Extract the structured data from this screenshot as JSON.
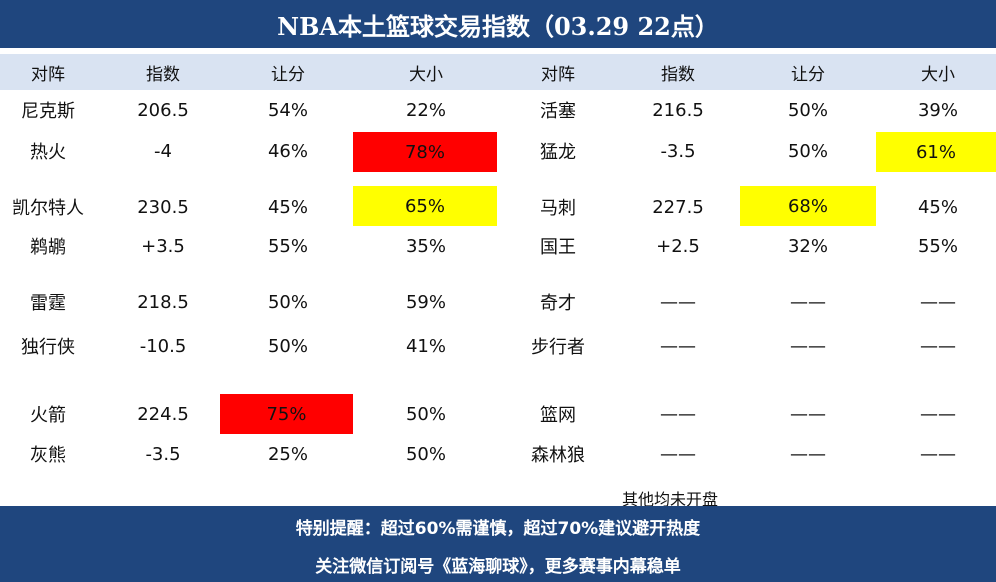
{
  "title": "NBA本土篮球交易指数（03.29 22点）",
  "headers": [
    "对阵",
    "指数",
    "让分",
    "大小",
    "对阵",
    "指数",
    "让分",
    "大小"
  ],
  "rows": [
    [
      "尼克斯",
      "206.5",
      "54%",
      "22%",
      "活塞",
      "216.5",
      "50%",
      "39%"
    ],
    [
      "热火",
      "-4",
      "46%",
      "78%",
      "猛龙",
      "-3.5",
      "50%",
      "61%"
    ],
    [
      "凯尔特人",
      "230.5",
      "45%",
      "65%",
      "马刺",
      "227.5",
      "68%",
      "45%"
    ],
    [
      "鹈鹕",
      "+3.5",
      "55%",
      "35%",
      "国王",
      "+2.5",
      "32%",
      "55%"
    ],
    [
      "雷霆",
      "218.5",
      "50%",
      "59%",
      "奇才",
      "——",
      "——",
      "——"
    ],
    [
      "独行侠",
      "-10.5",
      "50%",
      "41%",
      "步行者",
      "——",
      "——",
      "——"
    ],
    [
      "火箭",
      "224.5",
      "75%",
      "50%",
      "篮网",
      "——",
      "——",
      "——"
    ],
    [
      "灰熊",
      "-3.5",
      "25%",
      "50%",
      "森林狼",
      "——",
      "——",
      "——"
    ]
  ],
  "highlights": {
    "red": "#ff0000",
    "yellow": "#ffff00",
    "cells": [
      {
        "row": 1,
        "col": 3,
        "color": "red"
      },
      {
        "row": 1,
        "col": 7,
        "color": "yellow"
      },
      {
        "row": 2,
        "col": 3,
        "color": "yellow"
      },
      {
        "row": 2,
        "col": 6,
        "color": "yellow"
      },
      {
        "row": 6,
        "col": 2,
        "color": "red"
      }
    ]
  },
  "note": "其他均未开盘",
  "footer": {
    "line1": "特别提醒：超过60%需谨慎，超过70%建议避开热度",
    "line2": "关注微信订阅号《蓝海聊球》，更多赛事内幕稳单"
  },
  "colors": {
    "banner": "#1f467e",
    "header_bg": "#d9e3f2"
  }
}
